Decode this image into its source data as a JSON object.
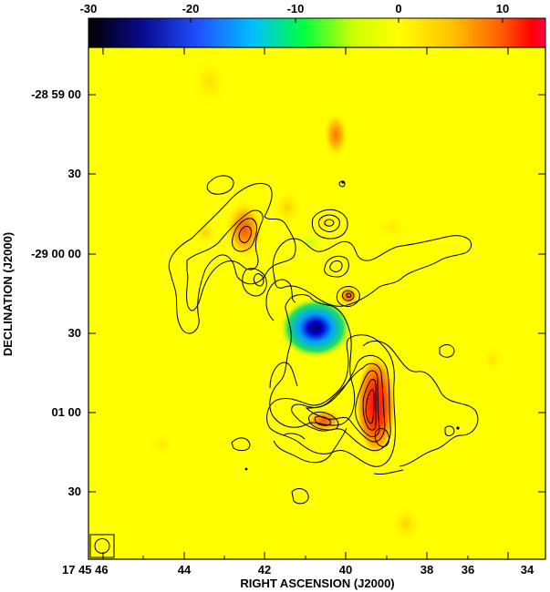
{
  "colorbar": {
    "ticks": [
      "-30",
      "-20",
      "-10",
      "0",
      "10"
    ],
    "gradient_colors": [
      "#000000",
      "#1010d0",
      "#2060ff",
      "#00c8ff",
      "#00ff40",
      "#c8ff00",
      "#ffff00",
      "#ffc000",
      "#ff6000",
      "#ff0000",
      "#ff0060"
    ]
  },
  "axes": {
    "xlabel": "RIGHT ASCENSION (J2000)",
    "ylabel": "DECLINATION (J2000)",
    "x_ticks": [
      "17 45 46",
      "44",
      "42",
      "40",
      "38",
      "36",
      "34"
    ],
    "y_ticks": [
      "-28 59 00",
      "30",
      "-29 00 00",
      "30",
      "01 00",
      "30"
    ]
  },
  "map": {
    "background_color": "#ffff00",
    "beam_symbol": "circle-in-box"
  }
}
